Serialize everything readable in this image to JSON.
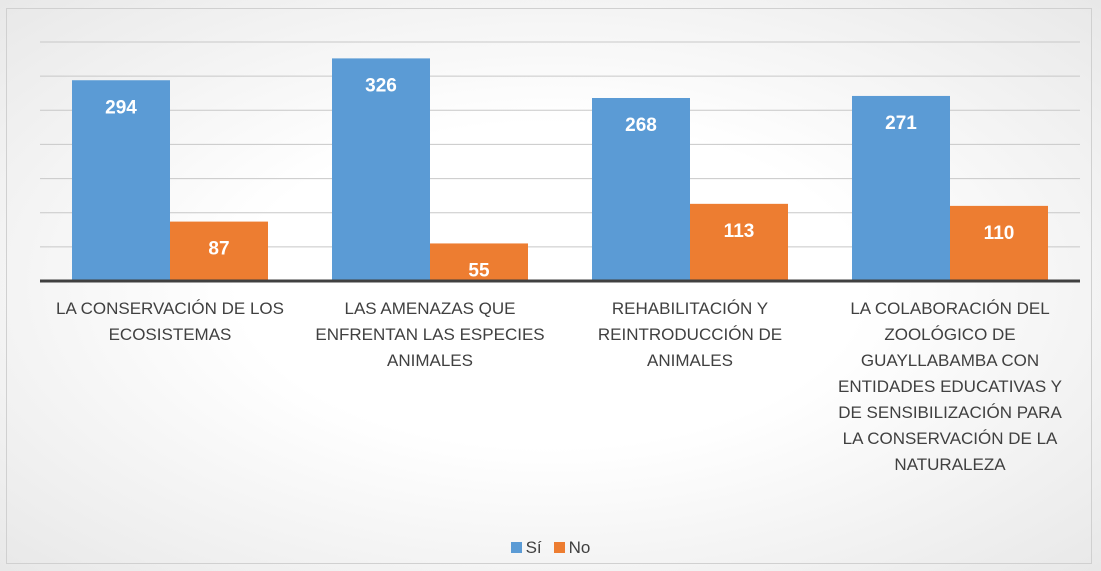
{
  "chart_data": {
    "type": "bar",
    "categories": [
      "LA CONSERVACIÓN DE LOS ECOSISTEMAS",
      "LAS AMENAZAS QUE ENFRENTAN LAS ESPECIES ANIMALES",
      "REHABILITACIÓN Y REINTRODUCCIÓN DE ANIMALES",
      "LA COLABORACIÓN DEL ZOOLÓGICO DE GUAYLLABAMBA CON ENTIDADES EDUCATIVAS Y DE SENSIBILIZACIÓN PARA LA CONSERVACIÓN DE LA NATURALEZA"
    ],
    "series": [
      {
        "name": "Sí",
        "color": "#5b9bd5",
        "values": [
          294,
          326,
          268,
          271
        ]
      },
      {
        "name": "No",
        "color": "#ed7d31",
        "values": [
          87,
          55,
          113,
          110
        ]
      }
    ],
    "ylim": [
      0,
      350
    ],
    "yticks": [
      0,
      50,
      100,
      150,
      200,
      250,
      300,
      350
    ],
    "grid": true,
    "legend": "bottom"
  }
}
